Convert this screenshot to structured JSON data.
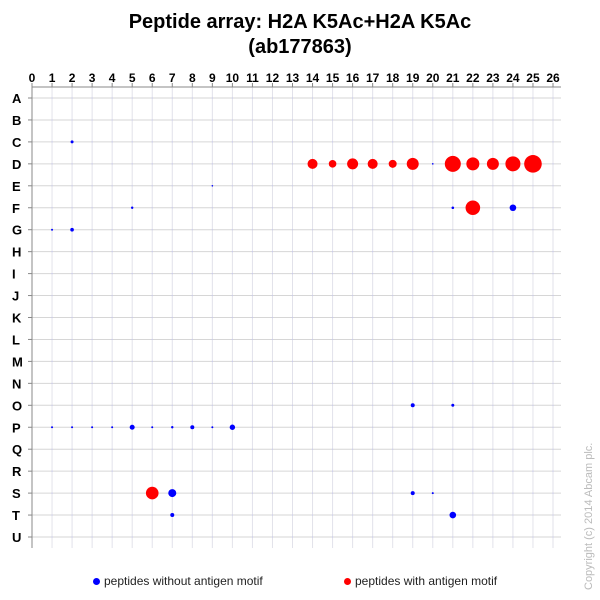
{
  "chart_data": {
    "type": "scatter",
    "title_line1": "Peptide array:  H2A  K5Ac+H2A  K5Ac",
    "title_line2": "(ab177863)",
    "x_ticks": [
      0,
      1,
      2,
      3,
      4,
      5,
      6,
      7,
      8,
      9,
      10,
      11,
      12,
      13,
      14,
      15,
      16,
      17,
      18,
      19,
      20,
      21,
      22,
      23,
      24,
      25,
      26
    ],
    "y_ticks": [
      "A",
      "B",
      "C",
      "D",
      "E",
      "F",
      "G",
      "H",
      "I",
      "J",
      "K",
      "L",
      "M",
      "N",
      "O",
      "P",
      "Q",
      "R",
      "S",
      "T",
      "U"
    ],
    "xlim": [
      0,
      26
    ],
    "grid": true,
    "legend_placement": "bottom",
    "colors": {
      "without": "#0000ff",
      "with": "#ff0000"
    },
    "series": [
      {
        "name": "peptides without antigen motif",
        "color": "#0000ff",
        "points": [
          {
            "x": 2,
            "y": "C",
            "size": 1.5
          },
          {
            "x": 9,
            "y": "E",
            "size": 0.8
          },
          {
            "x": 5,
            "y": "F",
            "size": 1.2
          },
          {
            "x": 20,
            "y": "D",
            "size": 0.8
          },
          {
            "x": 21,
            "y": "F",
            "size": 1.3
          },
          {
            "x": 24,
            "y": "F",
            "size": 3.3
          },
          {
            "x": 1,
            "y": "G",
            "size": 1
          },
          {
            "x": 2,
            "y": "G",
            "size": 1.8
          },
          {
            "x": 19,
            "y": "O",
            "size": 2
          },
          {
            "x": 21,
            "y": "O",
            "size": 1.5
          },
          {
            "x": 1,
            "y": "P",
            "size": 1
          },
          {
            "x": 2,
            "y": "P",
            "size": 1
          },
          {
            "x": 3,
            "y": "P",
            "size": 1
          },
          {
            "x": 4,
            "y": "P",
            "size": 1
          },
          {
            "x": 5,
            "y": "P",
            "size": 2.5
          },
          {
            "x": 6,
            "y": "P",
            "size": 1
          },
          {
            "x": 7,
            "y": "P",
            "size": 1.2
          },
          {
            "x": 8,
            "y": "P",
            "size": 2
          },
          {
            "x": 9,
            "y": "P",
            "size": 1
          },
          {
            "x": 10,
            "y": "P",
            "size": 2.7
          },
          {
            "x": 7,
            "y": "S",
            "size": 4
          },
          {
            "x": 19,
            "y": "S",
            "size": 2
          },
          {
            "x": 20,
            "y": "S",
            "size": 1
          },
          {
            "x": 7,
            "y": "T",
            "size": 2
          },
          {
            "x": 21,
            "y": "T",
            "size": 3.3
          }
        ]
      },
      {
        "name": "peptides with antigen motif",
        "color": "#ff0000",
        "points": [
          {
            "x": 14,
            "y": "D",
            "size": 5
          },
          {
            "x": 15,
            "y": "D",
            "size": 3.8
          },
          {
            "x": 16,
            "y": "D",
            "size": 5.5
          },
          {
            "x": 17,
            "y": "D",
            "size": 5
          },
          {
            "x": 18,
            "y": "D",
            "size": 4
          },
          {
            "x": 19,
            "y": "D",
            "size": 6
          },
          {
            "x": 21,
            "y": "D",
            "size": 8
          },
          {
            "x": 22,
            "y": "D",
            "size": 6.5
          },
          {
            "x": 23,
            "y": "D",
            "size": 6
          },
          {
            "x": 24,
            "y": "D",
            "size": 7.5
          },
          {
            "x": 25,
            "y": "D",
            "size": 8.8
          },
          {
            "x": 22,
            "y": "F",
            "size": 7.3
          },
          {
            "x": 6,
            "y": "S",
            "size": 6.3
          }
        ]
      }
    ]
  },
  "legend": {
    "without": "peptides without antigen motif",
    "with": "peptides with antigen motif"
  },
  "copyright": "Copyright (c) 2014 Abcam plc."
}
